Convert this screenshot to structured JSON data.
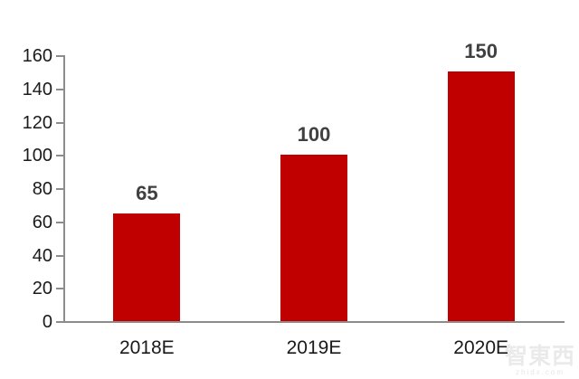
{
  "chart_data": {
    "type": "bar",
    "categories": [
      "2018E",
      "2019E",
      "2020E"
    ],
    "values": [
      65,
      100,
      150
    ],
    "data_labels": [
      "65",
      "100",
      "150"
    ],
    "title": "",
    "xlabel": "",
    "ylabel": "",
    "ylim": [
      0,
      160
    ],
    "ytick_step": 20,
    "ytick_labels": [
      "0",
      "20",
      "40",
      "60",
      "80",
      "100",
      "120",
      "140",
      "160"
    ],
    "grid": false,
    "legend": false,
    "bar_color": "#C00000",
    "axis_color": "#8c8c8c",
    "axis_label_color": "#1a1a1a",
    "value_label_color": "#404040"
  },
  "watermark": {
    "text": "智東西",
    "subtext": "zhidx.com"
  }
}
